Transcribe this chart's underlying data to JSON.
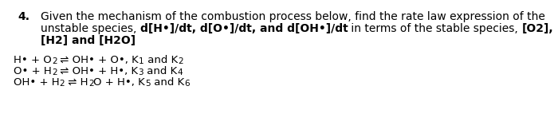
{
  "bg_color": "#ffffff",
  "fig_width": 7.0,
  "fig_height": 1.62,
  "dpi": 100,
  "number": "4.",
  "line1": "Given the mechanism of the combustion process below, find the rate law expression of the",
  "line2_n1": "unstable species, ",
  "line2_b1": "d[H•]/dt, d[O•]/dt, and d[OH•]/dt",
  "line2_n2": " in terms of the stable species, ",
  "line2_b2": "[O2],",
  "line3": "[H2] and [H2O]",
  "rxn1_p1": "H• + O",
  "rxn1_p2": "2",
  "rxn1_p3": " ⇌ OH• + O•, K",
  "rxn1_p4": "1",
  "rxn1_p5": " and K",
  "rxn1_p6": "2",
  "rxn2_p1": "O• + H",
  "rxn2_p2": "2",
  "rxn2_p3": " ⇌ OH• + H•, K",
  "rxn2_p4": "3",
  "rxn2_p5": " and K",
  "rxn2_p6": "4",
  "rxn3_p1": "OH• + H",
  "rxn3_p2": "2",
  "rxn3_p3": " ⇌ H",
  "rxn3_p4": "2",
  "rxn3_p5": "O + H•, K",
  "rxn3_p6": "5",
  "rxn3_p7": " and K",
  "rxn3_p8": "6",
  "font_family": "DejaVu Sans",
  "font_size_main": 10.0,
  "font_size_rxn": 9.5,
  "font_size_sub": 7.5
}
